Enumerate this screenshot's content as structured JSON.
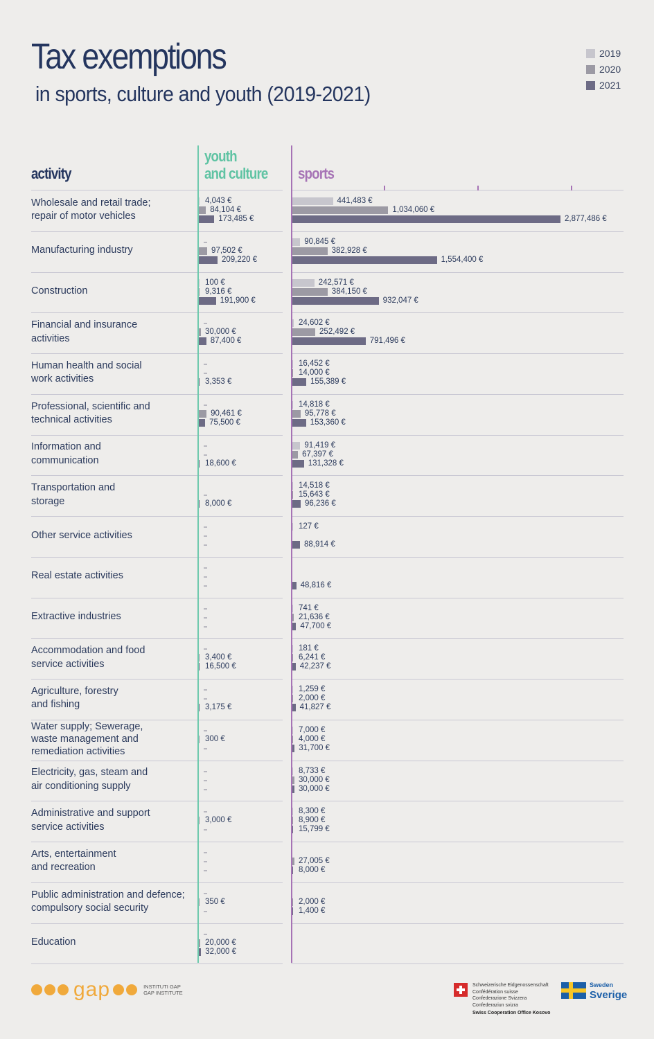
{
  "header": {
    "title": "Tax exemptions",
    "subtitle": "in sports, culture and youth (2019-2021)",
    "col_activity": "activity",
    "col_youth_line1": "youth",
    "col_youth_line2": "and culture",
    "col_sports": "sports"
  },
  "legend": [
    {
      "label": "2019",
      "color": "#c7c6cd"
    },
    {
      "label": "2020",
      "color": "#9c9aa4"
    },
    {
      "label": "2021",
      "color": "#6d6b85"
    }
  ],
  "chart_data": {
    "type": "bar",
    "orientation": "horizontal",
    "title": "Tax exemptions",
    "subtitle": "in sports, culture and youth (2019-2021)",
    "years": [
      "2019",
      "2020",
      "2021"
    ],
    "youth_max": 209220,
    "sports_max": 2877486,
    "rows": [
      {
        "label": "Wholesale and retail trade;\nrepair of motor vehicles",
        "youth": [
          {
            "v": 4043,
            "t": "4,043 €"
          },
          {
            "v": 84104,
            "t": "84,104 €"
          },
          {
            "v": 173485,
            "t": "173,485 €"
          }
        ],
        "sports": [
          {
            "v": 441483,
            "t": "441,483 €"
          },
          {
            "v": 1034060,
            "t": "1,034,060 €"
          },
          {
            "v": 2877486,
            "t": "2,877,486 €"
          }
        ]
      },
      {
        "label": "Manufacturing industry",
        "youth": [
          {
            "v": null,
            "t": "-"
          },
          {
            "v": 97502,
            "t": "97,502 €"
          },
          {
            "v": 209220,
            "t": "209,220 €"
          }
        ],
        "sports": [
          {
            "v": 90845,
            "t": "90,845 €"
          },
          {
            "v": 382928,
            "t": "382,928 €"
          },
          {
            "v": 1554400,
            "t": "1,554,400 €"
          }
        ]
      },
      {
        "label": "Construction",
        "youth": [
          {
            "v": 100,
            "t": "100 €"
          },
          {
            "v": 9316,
            "t": "9,316 €"
          },
          {
            "v": 191900,
            "t": "191,900 €"
          }
        ],
        "sports": [
          {
            "v": 242571,
            "t": "242,571 €"
          },
          {
            "v": 384150,
            "t": "384,150 €"
          },
          {
            "v": 932047,
            "t": "932,047 €"
          }
        ]
      },
      {
        "label": "Financial and insurance\nactivities",
        "youth": [
          {
            "v": null,
            "t": "-"
          },
          {
            "v": 30000,
            "t": "30,000 €"
          },
          {
            "v": 87400,
            "t": "87,400 €"
          }
        ],
        "sports": [
          {
            "v": 24602,
            "t": "24,602 €"
          },
          {
            "v": 252492,
            "t": "252,492 €"
          },
          {
            "v": 791496,
            "t": "791,496 €"
          }
        ]
      },
      {
        "label": "Human health and social\nwork activities",
        "youth": [
          {
            "v": null,
            "t": "-"
          },
          {
            "v": null,
            "t": "-"
          },
          {
            "v": 3353,
            "t": "3,353 €"
          }
        ],
        "sports": [
          {
            "v": 16452,
            "t": "16,452 €"
          },
          {
            "v": 14000,
            "t": "14,000 €"
          },
          {
            "v": 155389,
            "t": "155,389 €"
          }
        ]
      },
      {
        "label": "Professional, scientific and\ntechnical activities",
        "youth": [
          {
            "v": null,
            "t": "-"
          },
          {
            "v": 90461,
            "t": "90,461 €"
          },
          {
            "v": 75500,
            "t": "75,500 €"
          }
        ],
        "sports": [
          {
            "v": 14818,
            "t": "14,818 €"
          },
          {
            "v": 95778,
            "t": "95,778 €"
          },
          {
            "v": 153360,
            "t": "153,360 €"
          }
        ]
      },
      {
        "label": "Information and\ncommunication",
        "youth": [
          {
            "v": null,
            "t": "-"
          },
          {
            "v": null,
            "t": "-"
          },
          {
            "v": 18600,
            "t": "18,600 €"
          }
        ],
        "sports": [
          {
            "v": 91419,
            "t": "91,419 €"
          },
          {
            "v": 67397,
            "t": "67,397 €"
          },
          {
            "v": 131328,
            "t": "131,328 €"
          }
        ]
      },
      {
        "label": "Transportation and\nstorage",
        "youth": [
          {
            "v": null,
            "t": ""
          },
          {
            "v": null,
            "t": "-"
          },
          {
            "v": 8000,
            "t": "8,000 €"
          }
        ],
        "sports": [
          {
            "v": 14518,
            "t": "14,518 €"
          },
          {
            "v": 15643,
            "t": "15,643 €"
          },
          {
            "v": 96236,
            "t": "96,236 €"
          }
        ]
      },
      {
        "label": "Other service activities",
        "youth": [
          {
            "v": null,
            "t": "-"
          },
          {
            "v": null,
            "t": "-"
          },
          {
            "v": null,
            "t": "-"
          }
        ],
        "sports": [
          {
            "v": 127,
            "t": "127 €"
          },
          {
            "v": null,
            "t": ""
          },
          {
            "v": 88914,
            "t": "88,914 €"
          }
        ]
      },
      {
        "label": "Real estate activities",
        "youth": [
          {
            "v": null,
            "t": "-"
          },
          {
            "v": null,
            "t": "-"
          },
          {
            "v": null,
            "t": "-"
          }
        ],
        "sports": [
          {
            "v": null,
            "t": ""
          },
          {
            "v": null,
            "t": ""
          },
          {
            "v": 48816,
            "t": "48,816 €"
          }
        ]
      },
      {
        "label": "Extractive industries",
        "youth": [
          {
            "v": null,
            "t": "-"
          },
          {
            "v": null,
            "t": "-"
          },
          {
            "v": null,
            "t": "-"
          }
        ],
        "sports": [
          {
            "v": 741,
            "t": "741 €"
          },
          {
            "v": 21636,
            "t": "21,636 €"
          },
          {
            "v": 47700,
            "t": "47,700 €"
          }
        ]
      },
      {
        "label": "Accommodation and food\nservice activities",
        "youth": [
          {
            "v": null,
            "t": "-"
          },
          {
            "v": 3400,
            "t": "3,400 €"
          },
          {
            "v": 16500,
            "t": "16,500 €"
          }
        ],
        "sports": [
          {
            "v": 181,
            "t": "181 €"
          },
          {
            "v": 6241,
            "t": "6,241 €"
          },
          {
            "v": 42237,
            "t": "42,237 €"
          }
        ]
      },
      {
        "label": "Agriculture, forestry\nand fishing",
        "youth": [
          {
            "v": null,
            "t": "-"
          },
          {
            "v": null,
            "t": "-"
          },
          {
            "v": 3175,
            "t": "3,175 €"
          }
        ],
        "sports": [
          {
            "v": 1259,
            "t": "1,259 €"
          },
          {
            "v": 2000,
            "t": "2,000 €"
          },
          {
            "v": 41827,
            "t": "41,827 €"
          }
        ]
      },
      {
        "label": "Water supply; Sewerage,\nwaste management and\nremediation activities",
        "youth": [
          {
            "v": null,
            "t": "-"
          },
          {
            "v": 300,
            "t": "300 €"
          },
          {
            "v": null,
            "t": "-"
          }
        ],
        "sports": [
          {
            "v": 7000,
            "t": "7,000 €"
          },
          {
            "v": 4000,
            "t": "4,000 €"
          },
          {
            "v": 31700,
            "t": "31,700 €"
          }
        ]
      },
      {
        "label": "Electricity, gas, steam and\nair conditioning supply",
        "youth": [
          {
            "v": null,
            "t": "-"
          },
          {
            "v": null,
            "t": "-"
          },
          {
            "v": null,
            "t": "-"
          }
        ],
        "sports": [
          {
            "v": 8733,
            "t": "8,733 €"
          },
          {
            "v": 30000,
            "t": "30,000 €"
          },
          {
            "v": 30000,
            "t": "30,000 €"
          }
        ]
      },
      {
        "label": "Administrative and support\nservice activities",
        "youth": [
          {
            "v": null,
            "t": "-"
          },
          {
            "v": 3000,
            "t": "3,000 €"
          },
          {
            "v": null,
            "t": "-"
          }
        ],
        "sports": [
          {
            "v": 8300,
            "t": "8,300 €"
          },
          {
            "v": 8900,
            "t": "8,900 €"
          },
          {
            "v": 15799,
            "t": "15,799 €"
          }
        ]
      },
      {
        "label": "Arts, entertainment\nand recreation",
        "youth": [
          {
            "v": null,
            "t": "-"
          },
          {
            "v": null,
            "t": "-"
          },
          {
            "v": null,
            "t": "-"
          }
        ],
        "sports": [
          {
            "v": null,
            "t": ""
          },
          {
            "v": 27005,
            "t": "27,005 €"
          },
          {
            "v": 8000,
            "t": "8,000 €"
          }
        ]
      },
      {
        "label": "Public administration and defence;\ncompulsory social security",
        "youth": [
          {
            "v": null,
            "t": "-"
          },
          {
            "v": 350,
            "t": "350 €"
          },
          {
            "v": null,
            "t": "-"
          }
        ],
        "sports": [
          {
            "v": null,
            "t": ""
          },
          {
            "v": 2000,
            "t": "2,000 €"
          },
          {
            "v": 1400,
            "t": "1,400 €"
          }
        ]
      },
      {
        "label": "Education",
        "youth": [
          {
            "v": null,
            "t": "-"
          },
          {
            "v": 20000,
            "t": "20,000 €"
          },
          {
            "v": 32000,
            "t": "32,000 €"
          }
        ],
        "sports": [
          {
            "v": null,
            "t": ""
          },
          {
            "v": null,
            "t": ""
          },
          {
            "v": null,
            "t": ""
          }
        ]
      }
    ]
  },
  "footer": {
    "gap_word": "gap",
    "gap_line1": "INSTITUTI GAP",
    "gap_line2": "GAP INSTITUTE",
    "swiss_lines": [
      "Schweizerische Eidgenossenschaft",
      "Confédération suisse",
      "Confederazione Svizzera",
      "Confederaziun svizra"
    ],
    "swiss_office": "Swiss Cooperation Office Kosovo",
    "sweden_small": "Sweden",
    "sweden_big": "Sverige"
  }
}
